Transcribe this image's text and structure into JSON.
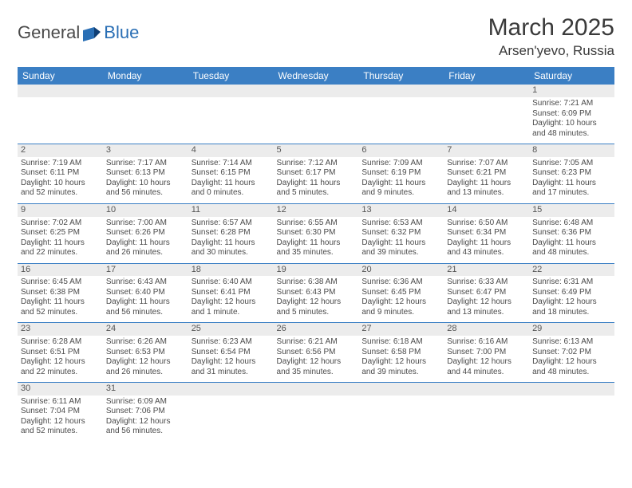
{
  "brand": {
    "part1": "General",
    "part2": "Blue"
  },
  "title": "March 2025",
  "location": "Arsen'yevo, Russia",
  "colors": {
    "header_bg": "#3b7fc4",
    "header_text": "#ffffff",
    "daynum_bg": "#ececec",
    "border": "#3b7fc4",
    "body_text": "#4a4a4a",
    "title_text": "#3a3a3a",
    "brand_blue": "#2a6fb5"
  },
  "typography": {
    "title_fontsize": 30,
    "location_fontsize": 17,
    "dayheader_fontsize": 12,
    "cell_fontsize": 10,
    "daynum_fontsize": 11
  },
  "day_headers": [
    "Sunday",
    "Monday",
    "Tuesday",
    "Wednesday",
    "Thursday",
    "Friday",
    "Saturday"
  ],
  "weeks": [
    [
      null,
      null,
      null,
      null,
      null,
      null,
      {
        "n": "1",
        "sunrise": "7:21 AM",
        "sunset": "6:09 PM",
        "daylight": "10 hours and 48 minutes."
      }
    ],
    [
      {
        "n": "2",
        "sunrise": "7:19 AM",
        "sunset": "6:11 PM",
        "daylight": "10 hours and 52 minutes."
      },
      {
        "n": "3",
        "sunrise": "7:17 AM",
        "sunset": "6:13 PM",
        "daylight": "10 hours and 56 minutes."
      },
      {
        "n": "4",
        "sunrise": "7:14 AM",
        "sunset": "6:15 PM",
        "daylight": "11 hours and 0 minutes."
      },
      {
        "n": "5",
        "sunrise": "7:12 AM",
        "sunset": "6:17 PM",
        "daylight": "11 hours and 5 minutes."
      },
      {
        "n": "6",
        "sunrise": "7:09 AM",
        "sunset": "6:19 PM",
        "daylight": "11 hours and 9 minutes."
      },
      {
        "n": "7",
        "sunrise": "7:07 AM",
        "sunset": "6:21 PM",
        "daylight": "11 hours and 13 minutes."
      },
      {
        "n": "8",
        "sunrise": "7:05 AM",
        "sunset": "6:23 PM",
        "daylight": "11 hours and 17 minutes."
      }
    ],
    [
      {
        "n": "9",
        "sunrise": "7:02 AM",
        "sunset": "6:25 PM",
        "daylight": "11 hours and 22 minutes."
      },
      {
        "n": "10",
        "sunrise": "7:00 AM",
        "sunset": "6:26 PM",
        "daylight": "11 hours and 26 minutes."
      },
      {
        "n": "11",
        "sunrise": "6:57 AM",
        "sunset": "6:28 PM",
        "daylight": "11 hours and 30 minutes."
      },
      {
        "n": "12",
        "sunrise": "6:55 AM",
        "sunset": "6:30 PM",
        "daylight": "11 hours and 35 minutes."
      },
      {
        "n": "13",
        "sunrise": "6:53 AM",
        "sunset": "6:32 PM",
        "daylight": "11 hours and 39 minutes."
      },
      {
        "n": "14",
        "sunrise": "6:50 AM",
        "sunset": "6:34 PM",
        "daylight": "11 hours and 43 minutes."
      },
      {
        "n": "15",
        "sunrise": "6:48 AM",
        "sunset": "6:36 PM",
        "daylight": "11 hours and 48 minutes."
      }
    ],
    [
      {
        "n": "16",
        "sunrise": "6:45 AM",
        "sunset": "6:38 PM",
        "daylight": "11 hours and 52 minutes."
      },
      {
        "n": "17",
        "sunrise": "6:43 AM",
        "sunset": "6:40 PM",
        "daylight": "11 hours and 56 minutes."
      },
      {
        "n": "18",
        "sunrise": "6:40 AM",
        "sunset": "6:41 PM",
        "daylight": "12 hours and 1 minute."
      },
      {
        "n": "19",
        "sunrise": "6:38 AM",
        "sunset": "6:43 PM",
        "daylight": "12 hours and 5 minutes."
      },
      {
        "n": "20",
        "sunrise": "6:36 AM",
        "sunset": "6:45 PM",
        "daylight": "12 hours and 9 minutes."
      },
      {
        "n": "21",
        "sunrise": "6:33 AM",
        "sunset": "6:47 PM",
        "daylight": "12 hours and 13 minutes."
      },
      {
        "n": "22",
        "sunrise": "6:31 AM",
        "sunset": "6:49 PM",
        "daylight": "12 hours and 18 minutes."
      }
    ],
    [
      {
        "n": "23",
        "sunrise": "6:28 AM",
        "sunset": "6:51 PM",
        "daylight": "12 hours and 22 minutes."
      },
      {
        "n": "24",
        "sunrise": "6:26 AM",
        "sunset": "6:53 PM",
        "daylight": "12 hours and 26 minutes."
      },
      {
        "n": "25",
        "sunrise": "6:23 AM",
        "sunset": "6:54 PM",
        "daylight": "12 hours and 31 minutes."
      },
      {
        "n": "26",
        "sunrise": "6:21 AM",
        "sunset": "6:56 PM",
        "daylight": "12 hours and 35 minutes."
      },
      {
        "n": "27",
        "sunrise": "6:18 AM",
        "sunset": "6:58 PM",
        "daylight": "12 hours and 39 minutes."
      },
      {
        "n": "28",
        "sunrise": "6:16 AM",
        "sunset": "7:00 PM",
        "daylight": "12 hours and 44 minutes."
      },
      {
        "n": "29",
        "sunrise": "6:13 AM",
        "sunset": "7:02 PM",
        "daylight": "12 hours and 48 minutes."
      }
    ],
    [
      {
        "n": "30",
        "sunrise": "6:11 AM",
        "sunset": "7:04 PM",
        "daylight": "12 hours and 52 minutes."
      },
      {
        "n": "31",
        "sunrise": "6:09 AM",
        "sunset": "7:06 PM",
        "daylight": "12 hours and 56 minutes."
      },
      null,
      null,
      null,
      null,
      null
    ]
  ],
  "labels": {
    "sunrise_prefix": "Sunrise: ",
    "sunset_prefix": "Sunset: ",
    "daylight_prefix": "Daylight: "
  }
}
